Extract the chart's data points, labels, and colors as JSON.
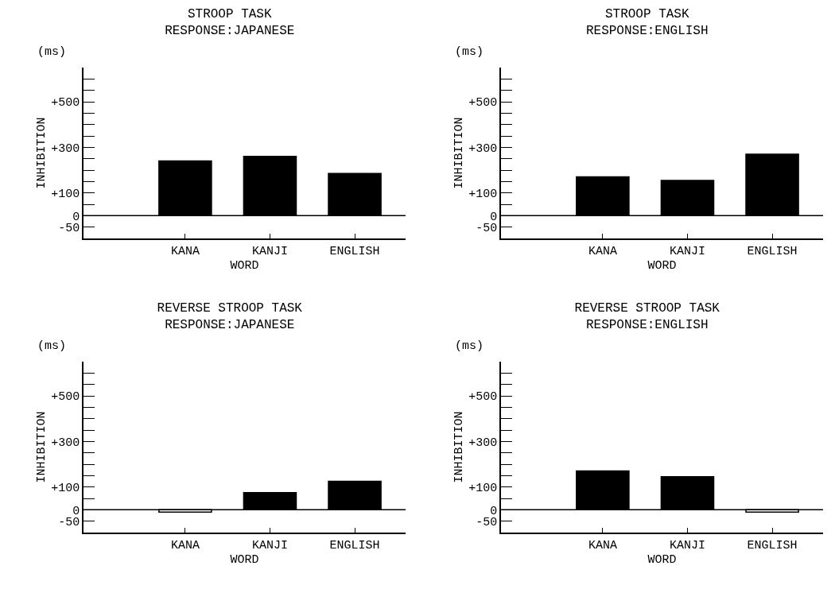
{
  "chart_data": [
    {
      "type": "bar",
      "title": "STROOP TASK",
      "subtitle": "RESPONSE:JAPANESE",
      "xlabel": "WORD",
      "ylabel": "INHIBITION",
      "annotations": [
        "(ms)"
      ],
      "categories": [
        "KANA",
        "KANJI",
        "ENGLISH"
      ],
      "values": [
        240,
        260,
        185
      ],
      "colors": [
        "#000000",
        "#000000",
        "#000000"
      ],
      "ylim": [
        -100,
        650
      ],
      "yticks": [
        {
          "value": -50,
          "label": "-50"
        },
        {
          "value": 0,
          "label": "0"
        },
        {
          "value": 50,
          "label": null
        },
        {
          "value": 100,
          "label": "+100"
        },
        {
          "value": 150,
          "label": null
        },
        {
          "value": 200,
          "label": null
        },
        {
          "value": 250,
          "label": null
        },
        {
          "value": 300,
          "label": "+300"
        },
        {
          "value": 350,
          "label": null
        },
        {
          "value": 400,
          "label": null
        },
        {
          "value": 450,
          "label": null
        },
        {
          "value": 500,
          "label": "+500"
        },
        {
          "value": 550,
          "label": null
        },
        {
          "value": 600,
          "label": null
        }
      ],
      "ref_lines": [
        {
          "axis": "y",
          "value": 0
        }
      ],
      "grid": false
    },
    {
      "type": "bar",
      "title": "STROOP TASK",
      "subtitle": "RESPONSE:ENGLISH",
      "xlabel": "WORD",
      "ylabel": "INHIBITION",
      "annotations": [
        "(ms)"
      ],
      "categories": [
        "KANA",
        "KANJI",
        "ENGLISH"
      ],
      "values": [
        170,
        155,
        270
      ],
      "colors": [
        "#000000",
        "#000000",
        "#000000"
      ],
      "ylim": [
        -100,
        650
      ],
      "yticks": [
        {
          "value": -50,
          "label": "-50"
        },
        {
          "value": 0,
          "label": "0"
        },
        {
          "value": 50,
          "label": null
        },
        {
          "value": 100,
          "label": "+100"
        },
        {
          "value": 150,
          "label": null
        },
        {
          "value": 200,
          "label": null
        },
        {
          "value": 250,
          "label": null
        },
        {
          "value": 300,
          "label": "+300"
        },
        {
          "value": 350,
          "label": null
        },
        {
          "value": 400,
          "label": null
        },
        {
          "value": 450,
          "label": null
        },
        {
          "value": 500,
          "label": "+500"
        },
        {
          "value": 550,
          "label": null
        },
        {
          "value": 600,
          "label": null
        }
      ],
      "ref_lines": [
        {
          "axis": "y",
          "value": 0
        }
      ],
      "grid": false
    },
    {
      "type": "bar",
      "title": "REVERSE STROOP TASK",
      "subtitle": "RESPONSE:JAPANESE",
      "xlabel": "WORD",
      "ylabel": "INHIBITION",
      "annotations": [
        "(ms)"
      ],
      "categories": [
        "KANA",
        "KANJI",
        "ENGLISH"
      ],
      "values": [
        -10,
        75,
        125
      ],
      "colors": [
        "#ffffff",
        "#000000",
        "#000000"
      ],
      "ylim": [
        -100,
        650
      ],
      "yticks": [
        {
          "value": -50,
          "label": "-50"
        },
        {
          "value": 0,
          "label": "0"
        },
        {
          "value": 50,
          "label": null
        },
        {
          "value": 100,
          "label": "+100"
        },
        {
          "value": 150,
          "label": null
        },
        {
          "value": 200,
          "label": null
        },
        {
          "value": 250,
          "label": null
        },
        {
          "value": 300,
          "label": "+300"
        },
        {
          "value": 350,
          "label": null
        },
        {
          "value": 400,
          "label": null
        },
        {
          "value": 450,
          "label": null
        },
        {
          "value": 500,
          "label": "+500"
        },
        {
          "value": 550,
          "label": null
        },
        {
          "value": 600,
          "label": null
        }
      ],
      "ref_lines": [
        {
          "axis": "y",
          "value": 0
        }
      ],
      "grid": false
    },
    {
      "type": "bar",
      "title": "REVERSE STROOP TASK",
      "subtitle": "RESPONSE:ENGLISH",
      "xlabel": "WORD",
      "ylabel": "INHIBITION",
      "annotations": [
        "(ms)"
      ],
      "categories": [
        "KANA",
        "KANJI",
        "ENGLISH"
      ],
      "values": [
        170,
        145,
        -10
      ],
      "colors": [
        "#000000",
        "#000000",
        "#ffffff"
      ],
      "ylim": [
        -100,
        650
      ],
      "yticks": [
        {
          "value": -50,
          "label": "-50"
        },
        {
          "value": 0,
          "label": "0"
        },
        {
          "value": 50,
          "label": null
        },
        {
          "value": 100,
          "label": "+100"
        },
        {
          "value": 150,
          "label": null
        },
        {
          "value": 200,
          "label": null
        },
        {
          "value": 250,
          "label": null
        },
        {
          "value": 300,
          "label": "+300"
        },
        {
          "value": 350,
          "label": null
        },
        {
          "value": 400,
          "label": null
        },
        {
          "value": 450,
          "label": null
        },
        {
          "value": 500,
          "label": "+500"
        },
        {
          "value": 550,
          "label": null
        },
        {
          "value": 600,
          "label": null
        }
      ],
      "ref_lines": [
        {
          "axis": "y",
          "value": 0
        }
      ],
      "grid": false
    }
  ]
}
